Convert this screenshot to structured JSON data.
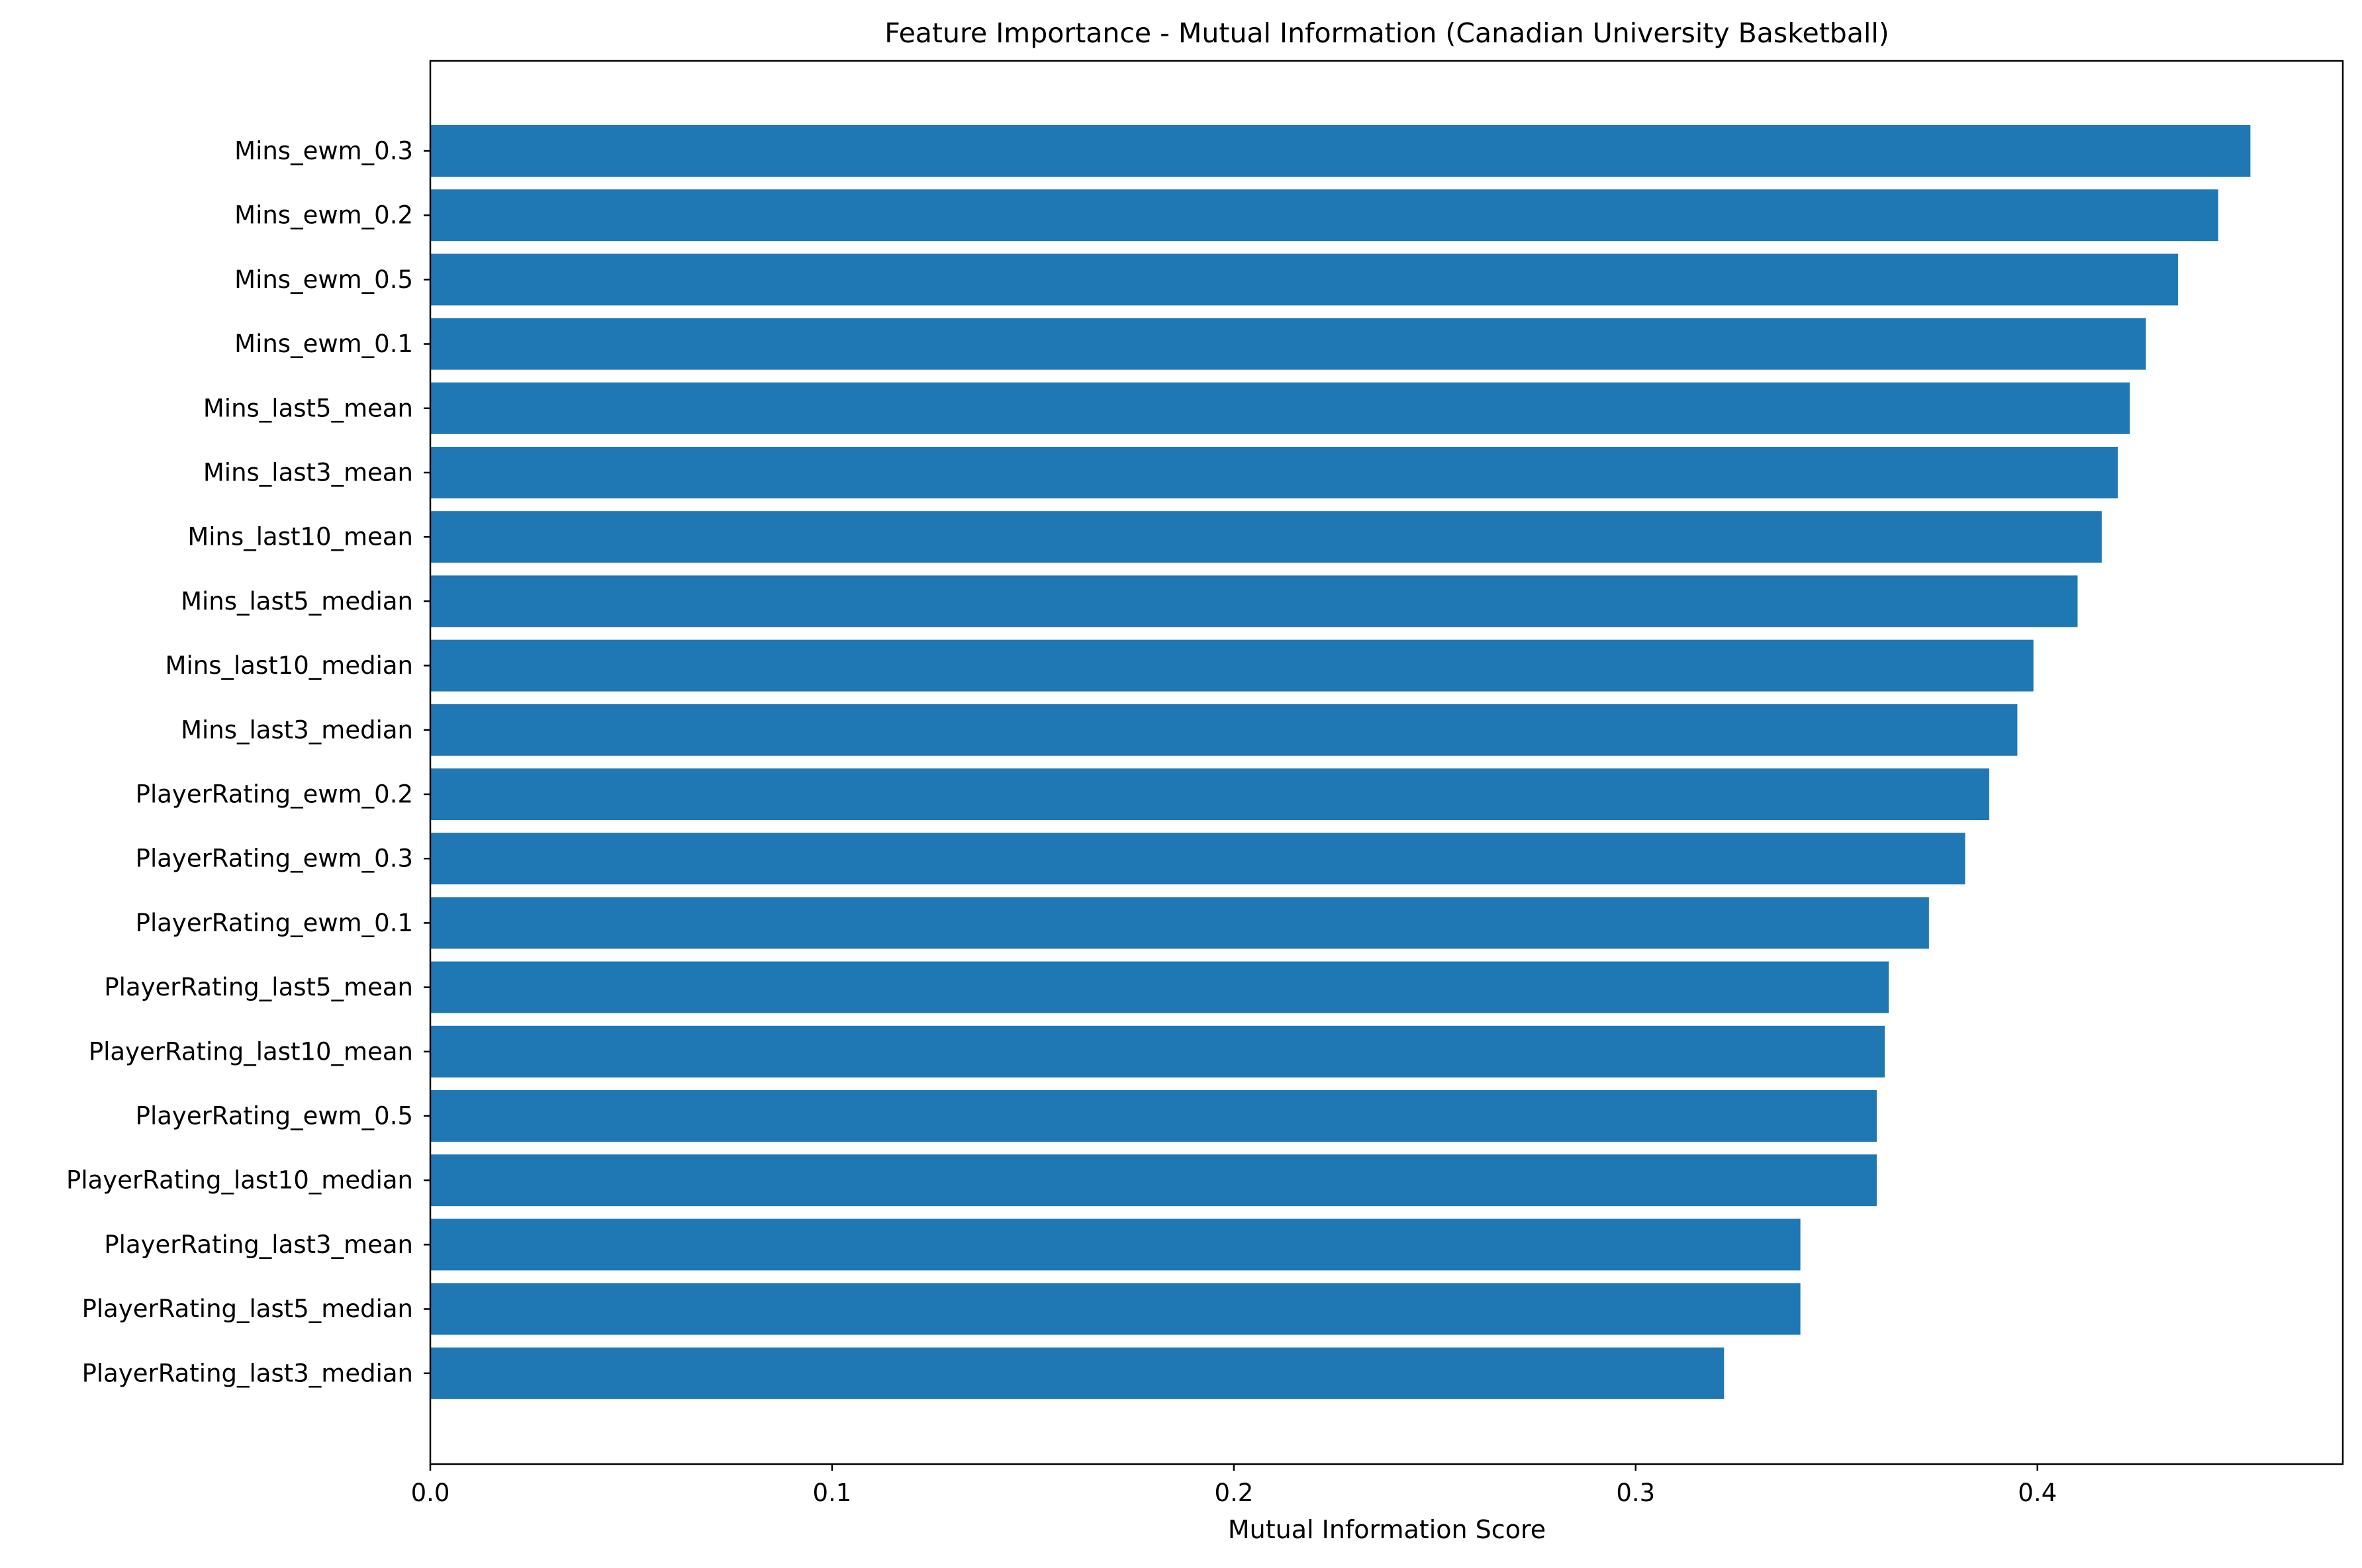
{
  "chart_data": {
    "type": "bar",
    "orientation": "horizontal",
    "title": "Feature Importance - Mutual Information (Canadian University Basketball)",
    "xlabel": "Mutual Information Score",
    "ylabel": "",
    "xlim": [
      0,
      0.476
    ],
    "xticks": [
      0.0,
      0.1,
      0.2,
      0.3,
      0.4
    ],
    "xtick_labels": [
      "0.0",
      "0.1",
      "0.2",
      "0.3",
      "0.4"
    ],
    "grid": false,
    "bar_color": "#1f77b4",
    "categories": [
      "Mins_ewm_0.3",
      "Mins_ewm_0.2",
      "Mins_ewm_0.5",
      "Mins_ewm_0.1",
      "Mins_last5_mean",
      "Mins_last3_mean",
      "Mins_last10_mean",
      "Mins_last5_median",
      "Mins_last10_median",
      "Mins_last3_median",
      "PlayerRating_ewm_0.2",
      "PlayerRating_ewm_0.3",
      "PlayerRating_ewm_0.1",
      "PlayerRating_last5_mean",
      "PlayerRating_last10_mean",
      "PlayerRating_ewm_0.5",
      "PlayerRating_last10_median",
      "PlayerRating_last3_mean",
      "PlayerRating_last5_median",
      "PlayerRating_last3_median"
    ],
    "values": [
      0.453,
      0.445,
      0.435,
      0.427,
      0.423,
      0.42,
      0.416,
      0.41,
      0.399,
      0.395,
      0.388,
      0.382,
      0.373,
      0.363,
      0.362,
      0.36,
      0.36,
      0.341,
      0.341,
      0.322
    ]
  }
}
